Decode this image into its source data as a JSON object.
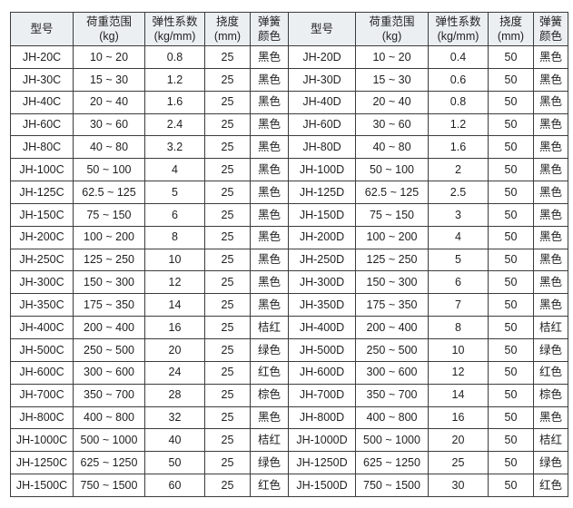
{
  "table": {
    "description": "spring spec table, two halves: C models (25mm deflection) and D models (50mm deflection)",
    "header": {
      "model": "型号",
      "load_range": "荷重范围\n(kg)",
      "coefficient": "弹性系数\n(kg/mm)",
      "deflection": "挠度(mm)",
      "spring_color": "弹簧\n颜色"
    },
    "rows": [
      [
        "JH-20C",
        "10 ~ 20",
        "0.8",
        "25",
        "黑色",
        "JH-20D",
        "10 ~ 20",
        "0.4",
        "50",
        "黑色"
      ],
      [
        "JH-30C",
        "15 ~ 30",
        "1.2",
        "25",
        "黑色",
        "JH-30D",
        "15 ~ 30",
        "0.6",
        "50",
        "黑色"
      ],
      [
        "JH-40C",
        "20 ~ 40",
        "1.6",
        "25",
        "黑色",
        "JH-40D",
        "20 ~ 40",
        "0.8",
        "50",
        "黑色"
      ],
      [
        "JH-60C",
        "30 ~ 60",
        "2.4",
        "25",
        "黑色",
        "JH-60D",
        "30 ~ 60",
        "1.2",
        "50",
        "黑色"
      ],
      [
        "JH-80C",
        "40 ~ 80",
        "3.2",
        "25",
        "黑色",
        "JH-80D",
        "40 ~ 80",
        "1.6",
        "50",
        "黑色"
      ],
      [
        "JH-100C",
        "50 ~ 100",
        "4",
        "25",
        "黑色",
        "JH-100D",
        "50 ~ 100",
        "2",
        "50",
        "黑色"
      ],
      [
        "JH-125C",
        "62.5 ~ 125",
        "5",
        "25",
        "黑色",
        "JH-125D",
        "62.5 ~ 125",
        "2.5",
        "50",
        "黑色"
      ],
      [
        "JH-150C",
        "75 ~ 150",
        "6",
        "25",
        "黑色",
        "JH-150D",
        "75 ~ 150",
        "3",
        "50",
        "黑色"
      ],
      [
        "JH-200C",
        "100 ~ 200",
        "8",
        "25",
        "黑色",
        "JH-200D",
        "100 ~ 200",
        "4",
        "50",
        "黑色"
      ],
      [
        "JH-250C",
        "125 ~ 250",
        "10",
        "25",
        "黑色",
        "JH-250D",
        "125 ~ 250",
        "5",
        "50",
        "黑色"
      ],
      [
        "JH-300C",
        "150 ~ 300",
        "12",
        "25",
        "黑色",
        "JH-300D",
        "150 ~ 300",
        "6",
        "50",
        "黑色"
      ],
      [
        "JH-350C",
        "175 ~ 350",
        "14",
        "25",
        "黑色",
        "JH-350D",
        "175 ~ 350",
        "7",
        "50",
        "黑色"
      ],
      [
        "JH-400C",
        "200 ~ 400",
        "16",
        "25",
        "桔红",
        "JH-400D",
        "200 ~ 400",
        "8",
        "50",
        "桔红"
      ],
      [
        "JH-500C",
        "250 ~ 500",
        "20",
        "25",
        "绿色",
        "JH-500D",
        "250 ~ 500",
        "10",
        "50",
        "绿色"
      ],
      [
        "JH-600C",
        "300 ~ 600",
        "24",
        "25",
        "红色",
        "JH-600D",
        "300 ~ 600",
        "12",
        "50",
        "红色"
      ],
      [
        "JH-700C",
        "350 ~ 700",
        "28",
        "25",
        "棕色",
        "JH-700D",
        "350 ~ 700",
        "14",
        "50",
        "棕色"
      ],
      [
        "JH-800C",
        "400 ~ 800",
        "32",
        "25",
        "黑色",
        "JH-800D",
        "400 ~ 800",
        "16",
        "50",
        "黑色"
      ],
      [
        "JH-1000C",
        "500 ~ 1000",
        "40",
        "25",
        "桔红",
        "JH-1000D",
        "500 ~ 1000",
        "20",
        "50",
        "桔红"
      ],
      [
        "JH-1250C",
        "625 ~ 1250",
        "50",
        "25",
        "绿色",
        "JH-1250D",
        "625 ~ 1250",
        "25",
        "50",
        "绿色"
      ],
      [
        "JH-1500C",
        "750 ~ 1500",
        "60",
        "25",
        "红色",
        "JH-1500D",
        "750 ~ 1500",
        "30",
        "50",
        "红色"
      ]
    ],
    "colors": {
      "header_bg": "#ebeff2",
      "border": "#3c3c3c",
      "text": "#1f1f1f",
      "row_bg": "#ffffff"
    }
  }
}
